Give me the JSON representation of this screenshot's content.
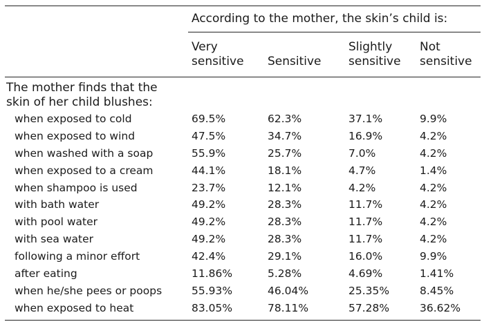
{
  "table": {
    "span_header": "According to the mother, the skin’s child is:",
    "columns": [
      {
        "line1": "Very",
        "line2": "sensitive"
      },
      {
        "line1": "",
        "line2": "Sensitive"
      },
      {
        "line1": "Slightly",
        "line2": "sensitive"
      },
      {
        "line1": "Not",
        "line2": "sensitive"
      }
    ],
    "section_label_line1": "The mother finds that the",
    "section_label_line2": "skin of her child blushes:",
    "rows": [
      {
        "label": "when exposed to cold",
        "values": [
          "69.5%",
          "62.3%",
          "37.1%",
          "9.9%"
        ]
      },
      {
        "label": "when exposed to wind",
        "values": [
          "47.5%",
          "34.7%",
          "16.9%",
          "4.2%"
        ]
      },
      {
        "label": "when washed with a soap",
        "values": [
          "55.9%",
          "25.7%",
          "7.0%",
          "4.2%"
        ]
      },
      {
        "label": "when exposed to a cream",
        "values": [
          "44.1%",
          "18.1%",
          "4.7%",
          "1.4%"
        ]
      },
      {
        "label": "when shampoo is used",
        "values": [
          "23.7%",
          "12.1%",
          "4.2%",
          "4.2%"
        ]
      },
      {
        "label": "with bath water",
        "values": [
          "49.2%",
          "28.3%",
          "11.7%",
          "4.2%"
        ]
      },
      {
        "label": "with pool water",
        "values": [
          "49.2%",
          "28.3%",
          "11.7%",
          "4.2%"
        ]
      },
      {
        "label": "with sea water",
        "values": [
          "49.2%",
          "28.3%",
          "11.7%",
          "4.2%"
        ]
      },
      {
        "label": "following a minor effort",
        "values": [
          "42.4%",
          "29.1%",
          "16.0%",
          "9.9%"
        ]
      },
      {
        "label": "after eating",
        "values": [
          "11.86%",
          "5.28%",
          "4.69%",
          "1.41%"
        ]
      },
      {
        "label": "when he/she pees or poops",
        "values": [
          "55.93%",
          "46.04%",
          "25.35%",
          "8.45%"
        ]
      },
      {
        "label": "when exposed to heat",
        "values": [
          "83.05%",
          "78.11%",
          "57.28%",
          "36.62%"
        ]
      }
    ]
  }
}
